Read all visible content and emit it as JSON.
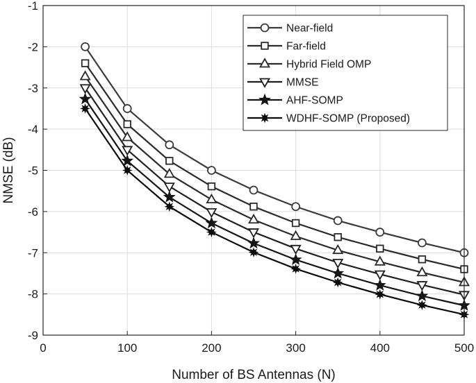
{
  "chart_data": {
    "type": "line",
    "title": "",
    "xlabel": "Number of BS Antennas (N)",
    "ylabel": "NMSE (dB)",
    "xlim": [
      0,
      500
    ],
    "ylim": [
      -9,
      -1
    ],
    "xticks": [
      0,
      100,
      200,
      300,
      400,
      500
    ],
    "yticks": [
      -9,
      -8,
      -7,
      -6,
      -5,
      -4,
      -3,
      -2,
      -1
    ],
    "grid": true,
    "legend_position": "top-right",
    "x": [
      50,
      100,
      150,
      200,
      250,
      300,
      350,
      400,
      450,
      500
    ],
    "series": [
      {
        "name": "Near-field",
        "marker": "circle",
        "color": "#3a3a3a",
        "values": [
          -2.0,
          -3.5,
          -4.38,
          -5.0,
          -5.48,
          -5.88,
          -6.22,
          -6.5,
          -6.76,
          -7.0
        ]
      },
      {
        "name": "Far-field",
        "marker": "square",
        "color": "#2a2a2a",
        "values": [
          -2.4,
          -3.88,
          -4.77,
          -5.39,
          -5.88,
          -6.28,
          -6.62,
          -6.9,
          -7.16,
          -7.4
        ]
      },
      {
        "name": "Hybrid Field OMP",
        "marker": "triangle-up",
        "color": "#2a2a2a",
        "values": [
          -2.72,
          -4.2,
          -5.09,
          -5.71,
          -6.2,
          -6.6,
          -6.94,
          -7.22,
          -7.48,
          -7.72
        ]
      },
      {
        "name": "MMSE",
        "marker": "triangle-down",
        "color": "#1f1f1f",
        "values": [
          -3.0,
          -4.5,
          -5.39,
          -6.01,
          -6.5,
          -6.9,
          -7.24,
          -7.52,
          -7.78,
          -8.02
        ]
      },
      {
        "name": "AHF-SOMP",
        "marker": "star",
        "color": "#151515",
        "values": [
          -3.27,
          -4.77,
          -5.65,
          -6.28,
          -6.77,
          -7.17,
          -7.5,
          -7.79,
          -8.05,
          -8.28
        ]
      },
      {
        "name": "WDHF-SOMP (Proposed)",
        "marker": "asterisk",
        "color": "#0a0a0a",
        "values": [
          -3.5,
          -5.0,
          -5.88,
          -6.5,
          -6.99,
          -7.39,
          -7.72,
          -8.01,
          -8.27,
          -8.5
        ]
      }
    ]
  }
}
